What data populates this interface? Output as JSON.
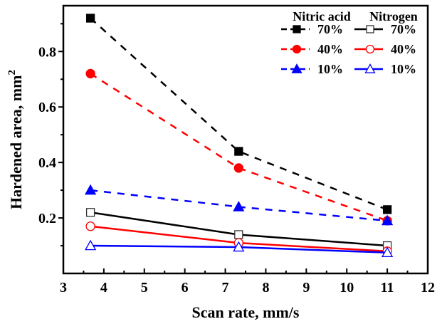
{
  "chart_data": {
    "type": "line",
    "title": "",
    "xlabel": "Scan rate, mm/s",
    "ylabel": "Hardened area, mm",
    "ylabel_superscript": "2",
    "xlim": [
      3,
      12
    ],
    "ylim": [
      0,
      0.965
    ],
    "xticks": [
      3,
      4,
      5,
      6,
      7,
      8,
      9,
      10,
      11,
      12
    ],
    "xtick_labels": [
      "3",
      "4",
      "5",
      "6",
      "7",
      "8",
      "9",
      "10",
      "11",
      "12"
    ],
    "xminor_step": 0.5,
    "yticks": [
      0.2,
      0.4,
      0.6,
      0.8
    ],
    "ytick_labels": [
      "0.2",
      "0.4",
      "0.6",
      "0.8"
    ],
    "yminor": [
      0.1,
      0.3,
      0.5,
      0.7,
      0.9
    ],
    "grid": false,
    "legend": {
      "placement": "top-right",
      "groups": [
        {
          "title": "Nitric acid",
          "labels": [
            "70%",
            "40%",
            "10%"
          ]
        },
        {
          "title": "Nitrogen",
          "labels": [
            "70%",
            "40%",
            "10%"
          ]
        }
      ]
    },
    "x": [
      3.67,
      7.33,
      11
    ],
    "series": [
      {
        "name": "Nitric acid 70%",
        "group": "Nitric acid",
        "label": "70%",
        "color": "#000000",
        "marker": "square",
        "filled": true,
        "dashed": true,
        "values": [
          0.92,
          0.44,
          0.23
        ]
      },
      {
        "name": "Nitric acid 40%",
        "group": "Nitric acid",
        "label": "40%",
        "color": "#ff0000",
        "marker": "circle",
        "filled": true,
        "dashed": true,
        "values": [
          0.72,
          0.38,
          0.19
        ]
      },
      {
        "name": "Nitric acid 10%",
        "group": "Nitric acid",
        "label": "10%",
        "color": "#0000ff",
        "marker": "triangle",
        "filled": true,
        "dashed": true,
        "values": [
          0.3,
          0.24,
          0.19
        ]
      },
      {
        "name": "Nitrogen 70%",
        "group": "Nitrogen",
        "label": "70%",
        "color": "#000000",
        "marker": "square",
        "filled": false,
        "dashed": false,
        "values": [
          0.22,
          0.14,
          0.1
        ]
      },
      {
        "name": "Nitrogen 40%",
        "group": "Nitrogen",
        "label": "40%",
        "color": "#ff0000",
        "marker": "circle",
        "filled": false,
        "dashed": false,
        "values": [
          0.17,
          0.11,
          0.08
        ]
      },
      {
        "name": "Nitrogen 10%",
        "group": "Nitrogen",
        "label": "10%",
        "color": "#0000ff",
        "marker": "triangle",
        "filled": false,
        "dashed": false,
        "values": [
          0.1,
          0.095,
          0.075
        ]
      }
    ]
  }
}
